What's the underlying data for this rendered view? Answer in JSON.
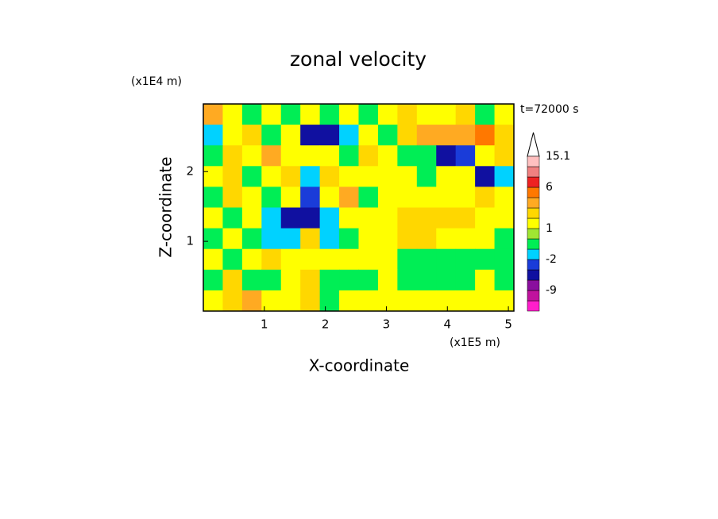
{
  "chart_data": {
    "type": "contour",
    "title": "zonal velocity",
    "annotation": "t=72000 s",
    "xlabel": "X-coordinate",
    "ylabel": "Z-coordinate",
    "xunit": "(x1E5 m)",
    "yunit": "(x1E4 m)",
    "xlim": [
      0,
      5.09
    ],
    "ylim": [
      0,
      2.97
    ],
    "xticks": [
      1,
      2,
      3,
      4,
      5
    ],
    "yticks": [
      1,
      2
    ],
    "levels": [
      -15,
      -12,
      -9,
      -6,
      -4,
      -2,
      -1,
      0,
      1,
      2,
      3,
      4,
      6,
      9,
      12,
      15.1
    ],
    "colors": [
      "#ff1ecb",
      "#c0129e",
      "#8a0f9e",
      "#1010a0",
      "#1a3cd9",
      "#00d2ff",
      "#00ee55",
      "#a0e632",
      "#ffff00",
      "#ffd700",
      "#ffaa22",
      "#ff7800",
      "#ee2222",
      "#f08080",
      "#ffc0c0"
    ],
    "colorbar_ticks": [
      15.1,
      6,
      1,
      -2,
      -9
    ],
    "z": [
      [
        3.5,
        1.5,
        -0.5,
        1.5,
        -0.5,
        1.5,
        -0.5,
        1.5,
        -0.5,
        1.5,
        2.5,
        1.5,
        1.5,
        2.5,
        -0.5,
        1.5
      ],
      [
        -1.5,
        1.5,
        2.5,
        -0.5,
        1.5,
        -5,
        -5,
        -1.5,
        1.5,
        -0.5,
        2.5,
        3.5,
        3.5,
        3.5,
        4.5,
        2.5
      ],
      [
        -0.5,
        2.5,
        1.5,
        3.5,
        1.5,
        1.5,
        1.5,
        -0.5,
        2.5,
        1.5,
        -0.5,
        -0.5,
        -5,
        -3,
        1.5,
        2.5
      ],
      [
        1.5,
        2.5,
        -0.5,
        1.5,
        2.5,
        -1.5,
        2.5,
        1.5,
        1.5,
        1.5,
        1.5,
        -0.5,
        1.5,
        1.5,
        -5,
        -1.5
      ],
      [
        -0.5,
        2.5,
        1.5,
        -0.5,
        1.5,
        -3,
        1.5,
        3.5,
        -0.5,
        1.5,
        1.5,
        1.5,
        1.5,
        1.5,
        2.5,
        1.5
      ],
      [
        1.5,
        -0.5,
        1.5,
        -1.5,
        -5,
        -5,
        -1.5,
        1.5,
        1.5,
        1.5,
        2.5,
        2.5,
        2.5,
        2.5,
        1.5,
        1.5
      ],
      [
        -0.5,
        1.5,
        -0.5,
        -1.5,
        -1.5,
        2.5,
        -1.5,
        -0.5,
        1.5,
        1.5,
        2.5,
        2.5,
        1.5,
        1.5,
        1.5,
        -0.5
      ],
      [
        1.5,
        -0.5,
        1.5,
        2.5,
        1.5,
        1.5,
        1.5,
        1.5,
        1.5,
        1.5,
        -0.5,
        -0.5,
        -0.5,
        -0.5,
        -0.5,
        -0.5
      ],
      [
        -0.5,
        2.5,
        -0.5,
        -0.5,
        1.5,
        2.5,
        -0.5,
        -0.5,
        -0.5,
        1.5,
        -0.5,
        -0.5,
        -0.5,
        -0.5,
        1.5,
        -0.5
      ],
      [
        1.5,
        2.5,
        3.5,
        1.5,
        1.5,
        2.5,
        -0.5,
        1.5,
        1.5,
        1.5,
        1.5,
        1.5,
        1.5,
        1.5,
        1.5,
        1.5
      ]
    ]
  }
}
